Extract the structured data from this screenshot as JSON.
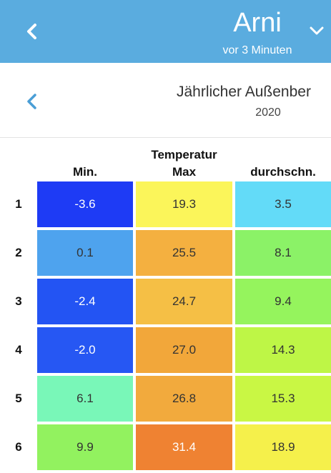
{
  "header": {
    "title": "Arni",
    "subtitle": "vor 3 Minuten",
    "back_icon": "chevron-left-icon",
    "dropdown_icon": "chevron-down-icon",
    "background": "#5aacdf"
  },
  "report": {
    "title": "Jährlicher Außenber",
    "year": "2020",
    "back_icon": "chevron-left-icon",
    "accent": "#4a9ed6"
  },
  "table": {
    "group_label": "Temperatur",
    "columns": [
      "Min.",
      "Max",
      "durchschn."
    ],
    "rows": [
      {
        "label": "1",
        "values": [
          "-3.6",
          "19.3",
          "3.5"
        ],
        "colors": [
          "#1e3bf5",
          "#fbf55a",
          "#63dbf8"
        ]
      },
      {
        "label": "2",
        "values": [
          "0.1",
          "25.5",
          "8.1"
        ],
        "colors": [
          "#4ea3ee",
          "#f4b040",
          "#8bf267"
        ]
      },
      {
        "label": "3",
        "values": [
          "-2.4",
          "24.7",
          "9.4"
        ],
        "colors": [
          "#2354f3",
          "#f5bf45",
          "#95f45d"
        ]
      },
      {
        "label": "4",
        "values": [
          "-2.0",
          "27.0",
          "14.3"
        ],
        "colors": [
          "#2657f3",
          "#f2a73a",
          "#bef646"
        ]
      },
      {
        "label": "5",
        "values": [
          "6.1",
          "26.8",
          "15.3"
        ],
        "colors": [
          "#79f7b8",
          "#f2aa3d",
          "#c9f744"
        ]
      },
      {
        "label": "6",
        "values": [
          "9.9",
          "31.4",
          "18.9"
        ],
        "colors": [
          "#92f25f",
          "#ef8232",
          "#f5f04b"
        ]
      }
    ]
  }
}
